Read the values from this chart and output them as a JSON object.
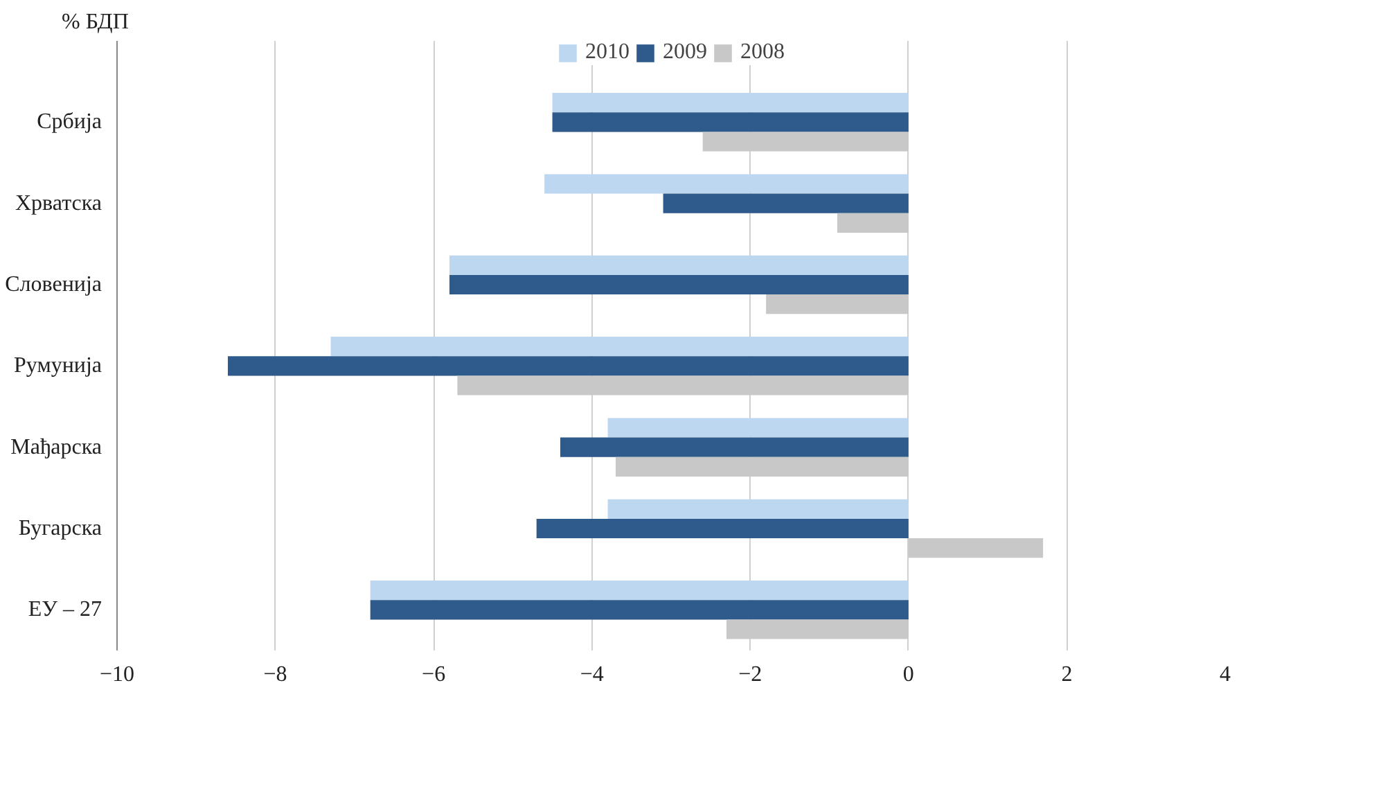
{
  "chart_data": {
    "type": "bar",
    "orientation": "horizontal",
    "ylabel": "% БДП",
    "categories": [
      "Србија",
      "Хрватска",
      "Словенија",
      "Румунија",
      "Мађарска",
      "Бугарска",
      "ЕУ – 27"
    ],
    "series": [
      {
        "name": "2010",
        "color": "#bdd7f0",
        "values": [
          -4.5,
          -4.6,
          -5.8,
          -7.3,
          -3.8,
          -3.8,
          -6.8
        ]
      },
      {
        "name": "2009",
        "color": "#2e5a8c",
        "values": [
          -4.5,
          -3.1,
          -5.8,
          -8.6,
          -4.4,
          -4.7,
          -6.8
        ]
      },
      {
        "name": "2008",
        "color": "#c8c8c8",
        "values": [
          -2.6,
          -0.9,
          -1.8,
          -5.7,
          -3.7,
          1.7,
          -2.3
        ]
      }
    ],
    "xlim": [
      -10,
      4
    ],
    "xticks": [
      -10,
      -8,
      -6,
      -4,
      -2,
      0,
      2,
      4
    ],
    "grid": "x",
    "legend": "top"
  }
}
